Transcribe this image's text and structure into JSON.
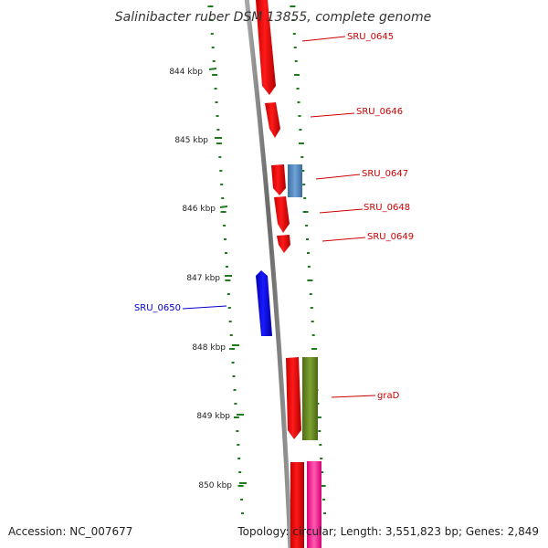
{
  "title": "Salinibacter ruber DSM 13855, complete genome",
  "footer": {
    "accession": "Accession: NC_007677",
    "summary": "Topology: circular; Length: 3,551,823 bp; Genes: 2,849"
  },
  "ticks": [
    "844 kbp",
    "845 kbp",
    "846 kbp",
    "847 kbp",
    "848 kbp",
    "849 kbp",
    "850 kbp"
  ],
  "genes": [
    {
      "label": "SRU_0645",
      "color": "#cc0000"
    },
    {
      "label": "SRU_0646",
      "color": "#cc0000"
    },
    {
      "label": "SRU_0647",
      "color": "#cc0000"
    },
    {
      "label": "SRU_0648",
      "color": "#cc0000"
    },
    {
      "label": "SRU_0649",
      "color": "#cc0000"
    },
    {
      "label": "SRU_0650",
      "color": "#0000cc"
    },
    {
      "label": "graD",
      "color": "#cc0000"
    }
  ],
  "colors": {
    "forward_gene": "#ff0000",
    "reverse_gene": "#0000ff",
    "steelblue_feature": "#5a8fc4",
    "olive_feature": "#6b8e23",
    "pink_feature": "#ff3fa0",
    "backbone": "#808080",
    "tick_dots": "#1f7a1f"
  }
}
